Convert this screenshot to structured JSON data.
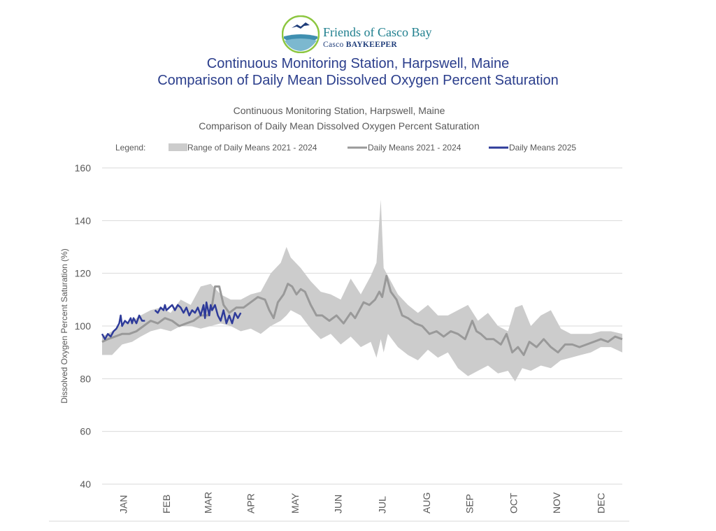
{
  "logo": {
    "name": "Friends of Casco Bay",
    "sub_prefix": "Casco",
    "sub_suffix": "BAYKEEPER"
  },
  "page": {
    "title_line1": "Continuous Monitoring Station, Harpswell, Maine",
    "title_line2": "Comparison of Daily Mean Dissolved Oxygen Percent Saturation"
  },
  "colors": {
    "heading": "#2b3e8c",
    "range_band": "#cccccc",
    "mean_line": "#999999",
    "line_2025": "#2e3b9a",
    "grid": "#d9d9d9",
    "axis_text": "#595959"
  },
  "chart_data": {
    "type": "line",
    "title": "Continuous Monitoring Station, Harpswell, Maine",
    "subtitle": "Comparison of Daily Mean Dissolved Oxygen Percent Saturation",
    "legend_label": "Legend:",
    "legend_position": "top",
    "xlabel": "",
    "ylabel": "Dissolved Oxygen Percent Saturation (%)",
    "ylim": [
      40,
      160
    ],
    "y_ticks": [
      40,
      60,
      80,
      100,
      120,
      140,
      160
    ],
    "xlim": [
      1,
      365
    ],
    "x_unit": "day of year",
    "month_ticks": [
      {
        "label": "JAN",
        "day": 16
      },
      {
        "label": "FEB",
        "day": 46
      },
      {
        "label": "MAR",
        "day": 75
      },
      {
        "label": "APR",
        "day": 105
      },
      {
        "label": "MAY",
        "day": 136
      },
      {
        "label": "JUN",
        "day": 166
      },
      {
        "label": "JUL",
        "day": 197
      },
      {
        "label": "AUG",
        "day": 228
      },
      {
        "label": "SEP",
        "day": 258
      },
      {
        "label": "OCT",
        "day": 289
      },
      {
        "label": "NOV",
        "day": 319
      },
      {
        "label": "DEC",
        "day": 350
      }
    ],
    "grid": true,
    "series": [
      {
        "name": "Range of Daily Means 2021 - 2024",
        "type": "band",
        "x": [
          1,
          8,
          15,
          22,
          28,
          35,
          42,
          49,
          56,
          63,
          70,
          77,
          84,
          91,
          98,
          105,
          112,
          119,
          126,
          130,
          133,
          140,
          147,
          154,
          161,
          168,
          175,
          182,
          189,
          193,
          196,
          198,
          201,
          208,
          215,
          222,
          229,
          236,
          243,
          250,
          257,
          264,
          271,
          278,
          285,
          290,
          295,
          301,
          308,
          315,
          322,
          329,
          336,
          343,
          350,
          357,
          365
        ],
        "lower": [
          89,
          89,
          93,
          94,
          96,
          98,
          99,
          98,
          100,
          100,
          99,
          100,
          101,
          100,
          98,
          99,
          97,
          100,
          102,
          104,
          106,
          104,
          99,
          95,
          97,
          93,
          96,
          92,
          94,
          88,
          95,
          90,
          97,
          92,
          89,
          87,
          91,
          88,
          90,
          84,
          81,
          83,
          85,
          82,
          83,
          79,
          84,
          83,
          85,
          84,
          87,
          88,
          89,
          90,
          92,
          92,
          90
        ],
        "upper": [
          96,
          98,
          101,
          102,
          104,
          106,
          107,
          105,
          110,
          108,
          115,
          116,
          112,
          110,
          110,
          112,
          113,
          120,
          124,
          130,
          126,
          122,
          117,
          113,
          112,
          110,
          118,
          112,
          119,
          124,
          148,
          122,
          119,
          112,
          108,
          105,
          108,
          104,
          104,
          106,
          108,
          102,
          105,
          100,
          98,
          107,
          108,
          100,
          104,
          106,
          99,
          97,
          97,
          97,
          98,
          98,
          97
        ]
      },
      {
        "name": "Daily Means 2021 - 2024",
        "type": "line",
        "x": [
          1,
          5,
          10,
          15,
          20,
          25,
          30,
          35,
          40,
          45,
          50,
          55,
          60,
          65,
          70,
          75,
          78,
          80,
          83,
          86,
          90,
          95,
          100,
          105,
          110,
          115,
          118,
          121,
          124,
          128,
          131,
          134,
          137,
          140,
          143,
          147,
          151,
          155,
          160,
          165,
          170,
          175,
          178,
          181,
          184,
          188,
          192,
          195,
          197,
          200,
          203,
          207,
          211,
          215,
          220,
          225,
          230,
          235,
          240,
          245,
          250,
          255,
          260,
          263,
          266,
          270,
          275,
          280,
          284,
          288,
          292,
          296,
          300,
          305,
          310,
          315,
          320,
          325,
          330,
          335,
          340,
          345,
          350,
          355,
          360,
          365
        ],
        "y": [
          94,
          95,
          96,
          97,
          97,
          98,
          100,
          102,
          101,
          103,
          102,
          100,
          101,
          102,
          104,
          104,
          108,
          115,
          115,
          108,
          105,
          107,
          107,
          109,
          111,
          110,
          106,
          103,
          109,
          112,
          116,
          115,
          112,
          114,
          113,
          108,
          104,
          104,
          102,
          104,
          101,
          105,
          103,
          106,
          109,
          108,
          110,
          113,
          111,
          119,
          113,
          110,
          104,
          103,
          101,
          100,
          97,
          98,
          96,
          98,
          97,
          95,
          102,
          98,
          97,
          95,
          95,
          93,
          97,
          90,
          92,
          89,
          94,
          92,
          95,
          92,
          90,
          93,
          93,
          92,
          93,
          94,
          95,
          94,
          96,
          95
        ]
      },
      {
        "name": "Daily Means 2025",
        "type": "line",
        "segments": [
          {
            "x": [
              1,
              3,
              5,
              7,
              9,
              11,
              13,
              14,
              15,
              17,
              19,
              21,
              22,
              23,
              25,
              27,
              29,
              31
            ],
            "y": [
              97,
              95,
              97,
              96,
              98,
              99,
              101,
              104,
              100,
              102,
              101,
              103,
              101,
              103,
              101,
              104,
              102,
              102
            ]
          },
          {
            "x": [
              38,
              40,
              42,
              44,
              45,
              46,
              48,
              50,
              52,
              54,
              56,
              58,
              60,
              62,
              64,
              66,
              68,
              70,
              72,
              73,
              74,
              76,
              77,
              78,
              80,
              82,
              84,
              86,
              88,
              90,
              92,
              94,
              96,
              98
            ],
            "y": [
              106,
              105,
              107,
              106,
              108,
              106,
              107,
              108,
              106,
              108,
              107,
              105,
              107,
              104,
              106,
              105,
              107,
              104,
              108,
              103,
              109,
              104,
              108,
              106,
              108,
              104,
              102,
              106,
              101,
              104,
              101,
              105,
              103,
              105
            ]
          }
        ]
      }
    ]
  }
}
